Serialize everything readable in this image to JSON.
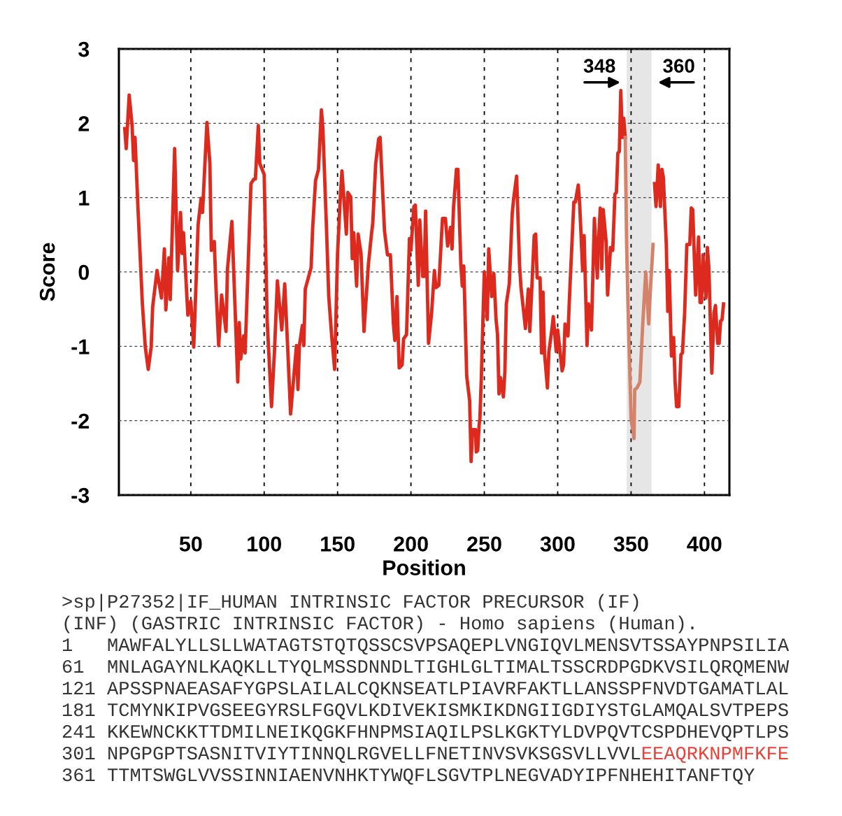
{
  "chart_data": {
    "type": "line",
    "xlabel": "Position",
    "ylabel": "Score",
    "xlim": [
      1,
      417
    ],
    "xticks": [
      50,
      100,
      150,
      200,
      250,
      300,
      350,
      400
    ],
    "ylim": [
      -3,
      3
    ],
    "yticks": [
      -3,
      -2,
      -1,
      0,
      1,
      2,
      3
    ],
    "grid": true,
    "line_style": "solid",
    "series": [
      {
        "color": "#dc2a1e",
        "x": [
          5,
          6,
          8,
          10,
          11,
          12,
          14,
          17,
          19,
          21,
          23,
          24,
          27,
          30,
          32,
          33,
          35,
          36,
          39,
          41,
          43,
          44,
          45,
          48,
          50,
          52,
          55,
          57,
          58,
          61,
          63,
          64,
          66,
          67,
          69,
          71,
          74,
          75,
          78,
          82,
          83,
          84,
          86,
          87,
          91,
          93,
          94,
          96,
          97,
          100,
          102,
          105,
          107,
          109,
          112,
          114,
          116,
          118,
          122,
          123,
          124,
          126,
          127,
          128,
          132,
          133,
          135,
          137,
          139,
          140,
          142.5,
          144,
          146,
          148,
          150,
          152,
          153,
          156,
          157,
          159,
          160,
          161,
          163,
          164,
          166,
          168,
          171,
          173,
          174,
          176,
          178,
          179,
          182,
          184,
          186,
          188,
          189,
          190.5,
          192,
          194,
          195,
          197,
          199,
          200,
          202,
          203,
          205,
          206,
          208,
          209,
          210,
          212,
          214,
          216,
          217,
          219,
          221.5,
          223.5,
          225,
          227,
          228,
          229,
          231,
          232,
          234,
          235,
          236,
          238,
          240,
          241,
          242,
          244,
          244.5,
          245.5,
          246.5,
          247,
          248,
          249,
          250,
          252,
          253,
          255,
          256.5,
          258,
          259,
          260,
          261,
          263,
          264,
          265,
          267,
          269,
          270,
          272,
          274,
          275,
          277,
          278,
          280,
          281,
          284,
          285,
          286,
          288,
          289,
          290,
          291,
          293,
          294,
          296,
          297,
          299,
          300,
          303,
          304,
          305,
          307,
          308,
          311,
          312,
          314,
          315,
          317,
          318,
          320,
          321,
          323,
          325,
          327,
          327.5,
          329,
          330,
          331,
          333,
          334,
          336,
          337.5,
          339,
          340,
          341,
          342,
          343,
          344,
          345,
          346,
          347,
          365,
          366,
          367,
          368.5,
          370,
          371,
          372,
          374,
          375,
          376,
          377.5,
          379,
          380,
          381,
          382.5,
          384,
          385,
          386.5,
          388,
          390,
          391,
          392,
          394,
          396,
          397,
          398,
          399,
          401,
          402,
          403,
          405,
          406.5,
          407.5,
          409,
          410,
          411,
          412,
          413
        ],
        "values": [
          1.93,
          1.66,
          2.38,
          1.97,
          1.5,
          1.81,
          0.86,
          -0.43,
          -1.01,
          -1.31,
          -1.01,
          -0.47,
          0.02,
          -0.35,
          0.31,
          -0.51,
          0.19,
          -0.37,
          1.66,
          0.02,
          0.8,
          0.25,
          0.53,
          -0.58,
          -0.39,
          -1.01,
          0.64,
          0.99,
          0.8,
          2.01,
          1.46,
          0.29,
          0.41,
          -0.14,
          -0.99,
          -0.31,
          -0.8,
          0.04,
          0.68,
          -1.48,
          -0.68,
          -1.17,
          -0.86,
          -1.09,
          1.19,
          1.25,
          1.25,
          1.97,
          1.46,
          1.31,
          -0.64,
          -1.81,
          -1.07,
          -0.12,
          -0.78,
          -0.16,
          -1.01,
          -1.91,
          -0.99,
          -1.58,
          -0.99,
          -0.72,
          -0.99,
          -0.23,
          0.06,
          0.58,
          1.23,
          1.38,
          2.18,
          1.93,
          0.57,
          -0.33,
          -0.86,
          -1.31,
          0.25,
          1.05,
          1.36,
          0.51,
          1.07,
          1.01,
          0.18,
          0.53,
          -0.19,
          0.51,
          0.25,
          -0.8,
          0.1,
          0.49,
          0.66,
          1.46,
          1.79,
          1.81,
          0.55,
          0.23,
          0.23,
          -0.68,
          -0.92,
          -0.33,
          -1.29,
          -1.25,
          -0.9,
          -0.84,
          0.45,
          0.29,
          0.88,
          0.9,
          -0.18,
          0.7,
          -0.06,
          -0.06,
          0.82,
          -0.96,
          -0.57,
          0.02,
          -0.21,
          -0.18,
          0.72,
          0.72,
          0.35,
          0.6,
          0.31,
          0.86,
          1.38,
          1.38,
          0.1,
          -0.19,
          0.08,
          -1.4,
          -1.73,
          -2.55,
          -2.12,
          -2.12,
          -2.42,
          -2.4,
          -2.05,
          -1.97,
          -1.4,
          -0.68,
          0,
          -0.64,
          0.31,
          -0.33,
          -0.02,
          -0.64,
          -0.84,
          -1.64,
          -1.42,
          -1.68,
          -1.35,
          -0.43,
          -0.16,
          0.78,
          0.99,
          1.29,
          0.1,
          -0.21,
          -0.57,
          -0.76,
          -0.23,
          -0.8,
          0.49,
          0.51,
          -0.08,
          -0.08,
          -1.09,
          -0.27,
          -1.09,
          -1.56,
          -1.07,
          -0.78,
          -0.6,
          -1.07,
          -0.78,
          -1.33,
          -1.25,
          -0.7,
          -0.86,
          -0.35,
          0.94,
          0.94,
          1.17,
          0.9,
          0.02,
          0.49,
          -0.99,
          -0.43,
          -0.78,
          0.72,
          -0.08,
          0.29,
          0.86,
          0.04,
          0.84,
          0.41,
          -0.31,
          0.33,
          0.29,
          1.05,
          1.07,
          1.6,
          1.62,
          2.44,
          1.81,
          2.07,
          1.81,
          null,
          null,
          1.19,
          0.88,
          1.44,
          0.88,
          1.38,
          1.27,
          0.37,
          -0.53,
          0.02,
          -1.13,
          -0.88,
          -1.48,
          -1.81,
          -1.81,
          -1.11,
          -1.09,
          -0.55,
          0.37,
          0.37,
          0.86,
          0.84,
          -0.31,
          0.47,
          -0.41,
          -0.41,
          0.23,
          -0.35,
          0.33,
          0.06,
          -1.36,
          -0.55,
          -0.45,
          -0.96,
          -0.96,
          -0.66,
          -0.64,
          -0.43
        ]
      },
      {
        "color": "#d4826a",
        "x": [
          346,
          347,
          348,
          350,
          352,
          352.5,
          354,
          356,
          358,
          360,
          362,
          363,
          365
        ],
        "values": [
          1.81,
          0.33,
          -0.53,
          -1.97,
          -2.24,
          -1.58,
          -1.56,
          -1.48,
          -0.68,
          0.0,
          -0.7,
          -0.29,
          0.37
        ]
      }
    ],
    "bands": [
      {
        "axis": "x",
        "from": 347,
        "to": 364,
        "color": "#e6e6e6"
      }
    ],
    "annotations": [
      {
        "text": "348",
        "x": 347,
        "y": 2.55
      },
      {
        "text": "360",
        "x": 364,
        "y": 2.55
      },
      ">sp|P27352|IF_HUMAN INTRINSIC FACTOR PRECURSOR (IF)",
      "(INF) (GASTRIC INTRINSIC FACTOR) - Homo sapiens (Human).",
      "1   MAWFALYLLSLLWATAGTSTQTQSSCSVPSAQEPLVNGIQVLMENSVTSSAYPNPSILIA",
      "61  MNLAGAYNLKAQKLLTYQLMSSDNNDLTIGHLGLTIMALTSSCRDPGDKVSILQRQMENW",
      "121 APSSPNAEASAFYGPSLAILALCQKNSEATLPIAVRFAKTLLANSSPFNVDTGAMATLAL",
      "181 TCMYNKIPVGSEEGYRSLFGQVLKDIVEKISMKIKDNGIIGDIYSTGLAMQALSVTPEPS",
      "241 KKEWNCKKTTDMILNEIKQGKFHNPMSIAQILPSLKGKTYLDVPQVTCSPDHEVQPTLPS",
      "301 NPGPGPTSASNITVIYTINNQLRGVELLFNETINVSVKSGSVLLVVL",
      "EEAQRKNPMFKFE",
      "361 TTMTSWGLVVSSINNIAENVNHKTYWQFLSGVTPLNEGVADYIPFNHEHITANFTQY"
    ]
  }
}
